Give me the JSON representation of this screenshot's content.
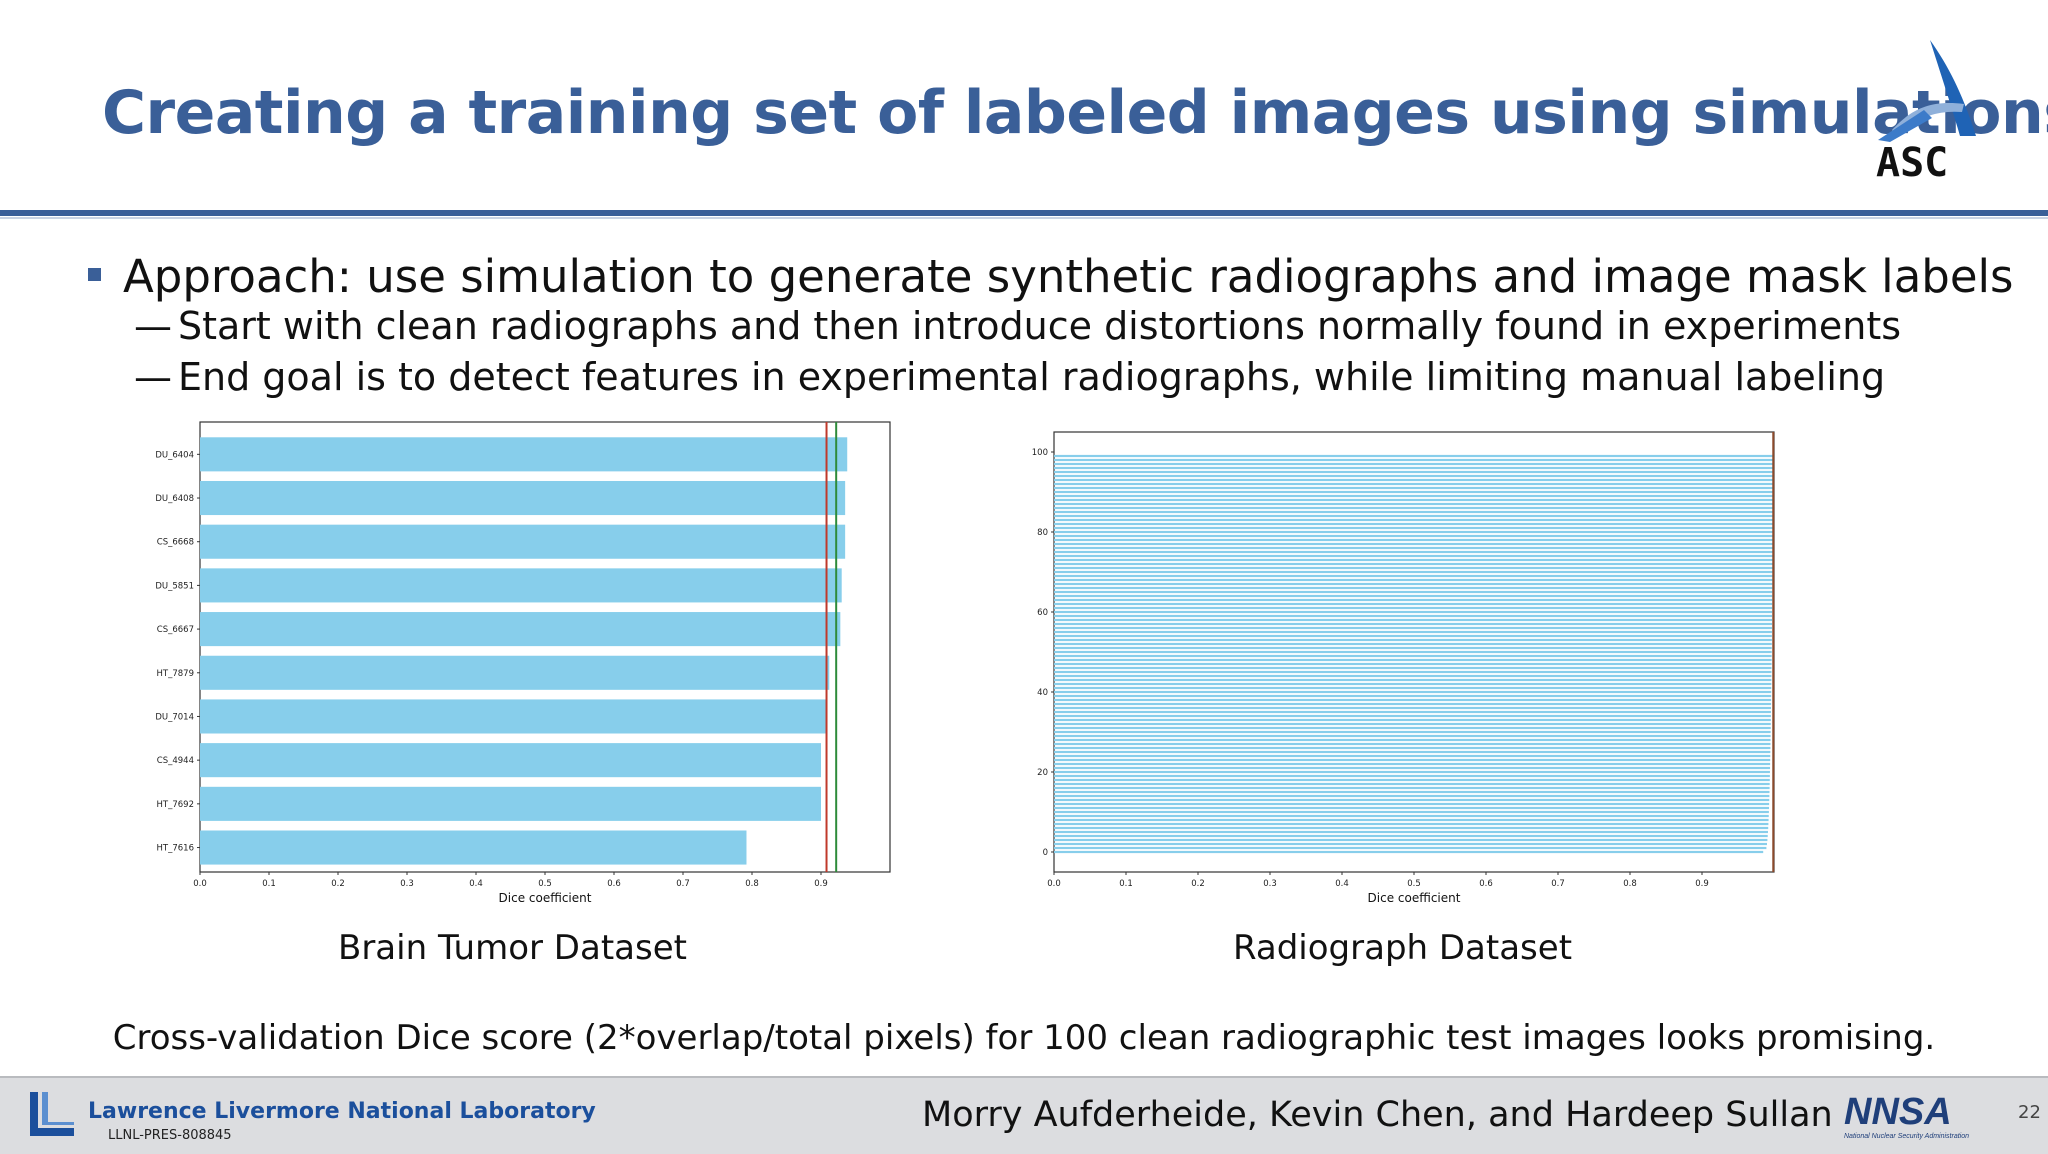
{
  "slide": {
    "title": "Creating a training set of labeled images using simulations",
    "bullet": "Approach: use simulation to generate synthetic radiographs and image mask labels",
    "subbullets": [
      "Start with clean radiographs and then introduce distortions normally found in experiments",
      "End goal is to detect features in experimental radiographs, while limiting manual labeling"
    ],
    "captions": {
      "left": "Brain Tumor Dataset",
      "right": "Radiograph Dataset"
    },
    "footnote": "Cross-validation Dice score (2*overlap/total pixels) for 100 clean radiographic test images looks promising.",
    "footer": {
      "lab_name": "Lawrence Livermore National Laboratory",
      "doc_code": "LLNL-PRES-808845",
      "authors": "Morry Aufderheide, Kevin Chen, and Hardeep Sullan",
      "page": "22",
      "nnsa_tagline": "National Nuclear Security Administration",
      "nnsa_mark": "NNSA",
      "asc_mark": "ASC"
    },
    "colors": {
      "title": "#3a5f98",
      "bar": "#87ceeb",
      "line_red": "#c0392b",
      "line_green": "#2e8b3a"
    }
  },
  "chart_data": [
    {
      "type": "bar",
      "orientation": "horizontal",
      "categories": [
        "DU_6404",
        "DU_6408",
        "CS_6668",
        "DU_5851",
        "CS_6667",
        "HT_7879",
        "DU_7014",
        "CS_4944",
        "HT_7692",
        "HT_7616"
      ],
      "values": [
        0.938,
        0.935,
        0.935,
        0.93,
        0.928,
        0.912,
        0.908,
        0.9,
        0.9,
        0.792
      ],
      "xlabel": "Dice coefficient",
      "xlim": [
        0.0,
        1.0
      ],
      "xticks": [
        "0.0",
        "0.1",
        "0.2",
        "0.3",
        "0.4",
        "0.5",
        "0.6",
        "0.7",
        "0.8",
        "0.9"
      ],
      "reference_lines": [
        {
          "color": "red",
          "x": 0.908
        },
        {
          "color": "green",
          "x": 0.922
        }
      ]
    },
    {
      "type": "bar",
      "orientation": "horizontal",
      "count": 100,
      "values_range": [
        0.985,
        0.999
      ],
      "xlabel": "Dice coefficient",
      "xlim": [
        0.0,
        1.0
      ],
      "xticks": [
        "0.0",
        "0.1",
        "0.2",
        "0.3",
        "0.4",
        "0.5",
        "0.6",
        "0.7",
        "0.8",
        "0.9"
      ],
      "yticks": [
        "0",
        "20",
        "40",
        "60",
        "80",
        "100"
      ],
      "reference_lines": [
        {
          "color": "brown",
          "x": 0.999
        }
      ]
    }
  ]
}
